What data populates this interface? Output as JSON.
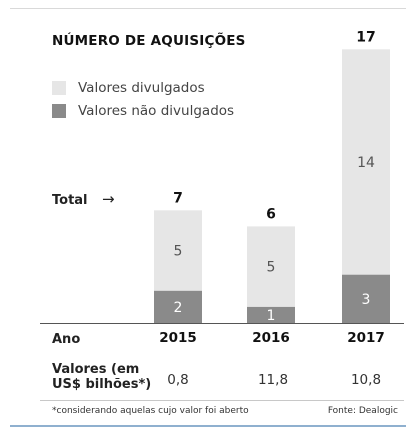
{
  "title": "NÚMERO DE AQUISIÇÕES",
  "legend": {
    "disclosed": "Valores divulgados",
    "undisclosed": "Valores não divulgados"
  },
  "total_label": "Total",
  "total_arrow": "→",
  "row_labels": {
    "year": "Ano",
    "values_line1": "Valores (em",
    "values_line2": "US$ bilhões*)"
  },
  "values": [
    "0,8",
    "11,8",
    "10,8"
  ],
  "footnote": "*considerando aquelas cujo valor foi aberto",
  "source": "Fonte: Dealogic",
  "colors": {
    "disclosed": "#e6e6e6",
    "undisclosed": "#8a8a8a"
  },
  "chart_data": {
    "type": "bar",
    "stacked": true,
    "categories": [
      "2015",
      "2016",
      "2017"
    ],
    "series": [
      {
        "name": "Valores não divulgados",
        "values": [
          2,
          1,
          3
        ]
      },
      {
        "name": "Valores divulgados",
        "values": [
          5,
          5,
          14
        ]
      }
    ],
    "totals": [
      7,
      6,
      17
    ],
    "title": "NÚMERO DE AQUISIÇÕES",
    "xlabel": "Ano",
    "ylabel": "",
    "ylim": [
      0,
      17
    ],
    "grid": false,
    "legend": "top-left"
  }
}
